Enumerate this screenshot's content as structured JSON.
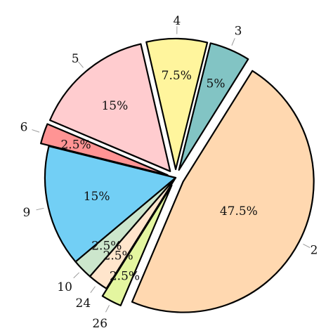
{
  "chart_data": {
    "type": "pie",
    "title": "",
    "slices": [
      {
        "label": "2",
        "value": 47.5,
        "display": "47.5%",
        "color": "#FFD8B0",
        "exploded": true
      },
      {
        "label": "26",
        "value": 2.5,
        "display": "2.5%",
        "color": "#E4F6A0",
        "exploded": true
      },
      {
        "label": "24",
        "value": 2.5,
        "display": "2.5%",
        "color": "#FFE5CC",
        "exploded": false
      },
      {
        "label": "10",
        "value": 2.5,
        "display": "2.5%",
        "color": "#CCE6CC",
        "exploded": false
      },
      {
        "label": "9",
        "value": 15,
        "display": "15%",
        "color": "#72CFF5",
        "exploded": false
      },
      {
        "label": "6",
        "value": 2.5,
        "display": "2.5%",
        "color": "#FF9494",
        "exploded": true
      },
      {
        "label": "5",
        "value": 15,
        "display": "15%",
        "color": "#FFCCCF",
        "exploded": true
      },
      {
        "label": "4",
        "value": 7.5,
        "display": "7.5%",
        "color": "#FFF59D",
        "exploded": true
      },
      {
        "label": "3",
        "value": 5,
        "display": "5%",
        "color": "#82C4C4",
        "exploded": true
      }
    ]
  }
}
